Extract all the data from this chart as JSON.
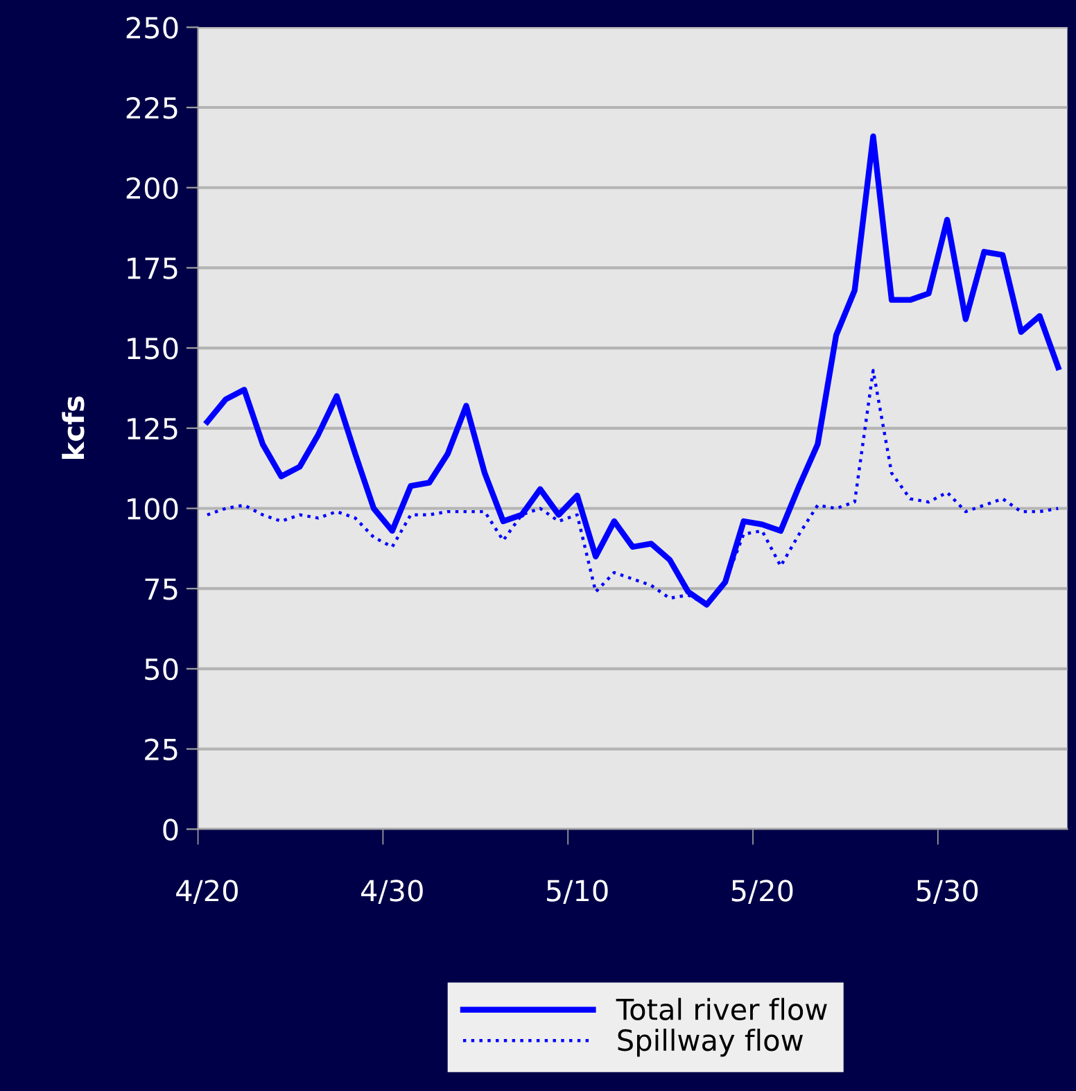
{
  "chart_data": {
    "type": "line",
    "ylabel": "kcfs",
    "categories": [
      "4/20",
      null,
      null,
      null,
      null,
      null,
      null,
      null,
      null,
      null,
      "4/30",
      null,
      null,
      null,
      null,
      null,
      null,
      null,
      null,
      null,
      "5/10",
      null,
      null,
      null,
      null,
      null,
      null,
      null,
      null,
      null,
      "5/20",
      null,
      null,
      null,
      null,
      null,
      null,
      null,
      null,
      null,
      "5/30",
      null,
      null,
      null,
      null,
      null,
      null
    ],
    "series": [
      {
        "name": "Total river flow",
        "color": "#0000ff",
        "line_style": "solid",
        "values": [
          127,
          134,
          137,
          120,
          110,
          113,
          123,
          135,
          117,
          100,
          93,
          107,
          108,
          117,
          132,
          111,
          96,
          98,
          106,
          98,
          104,
          85,
          96,
          88,
          89,
          84,
          74,
          70,
          77,
          96,
          95,
          93,
          107,
          120,
          154,
          168,
          216,
          165,
          165,
          167,
          190,
          159,
          180,
          179,
          155,
          160,
          144
        ]
      },
      {
        "name": "Spillway flow",
        "color": "#0000ff",
        "line_style": "dotted",
        "values": [
          98,
          100,
          101,
          98,
          96,
          98,
          97,
          99,
          97,
          91,
          88,
          98,
          98,
          99,
          99,
          99,
          90,
          98,
          100,
          96,
          98,
          74,
          80,
          78,
          76,
          72,
          73,
          70,
          77,
          92,
          93,
          82,
          92,
          101,
          100,
          102,
          143,
          111,
          103,
          102,
          105,
          99,
          101,
          103,
          99,
          99,
          100
        ]
      }
    ],
    "ylim": [
      0,
      250
    ],
    "yticks": [
      0,
      25,
      50,
      75,
      100,
      125,
      150,
      175,
      200,
      225,
      250
    ],
    "grid": "y",
    "legend": "bottom",
    "marker": "none"
  }
}
